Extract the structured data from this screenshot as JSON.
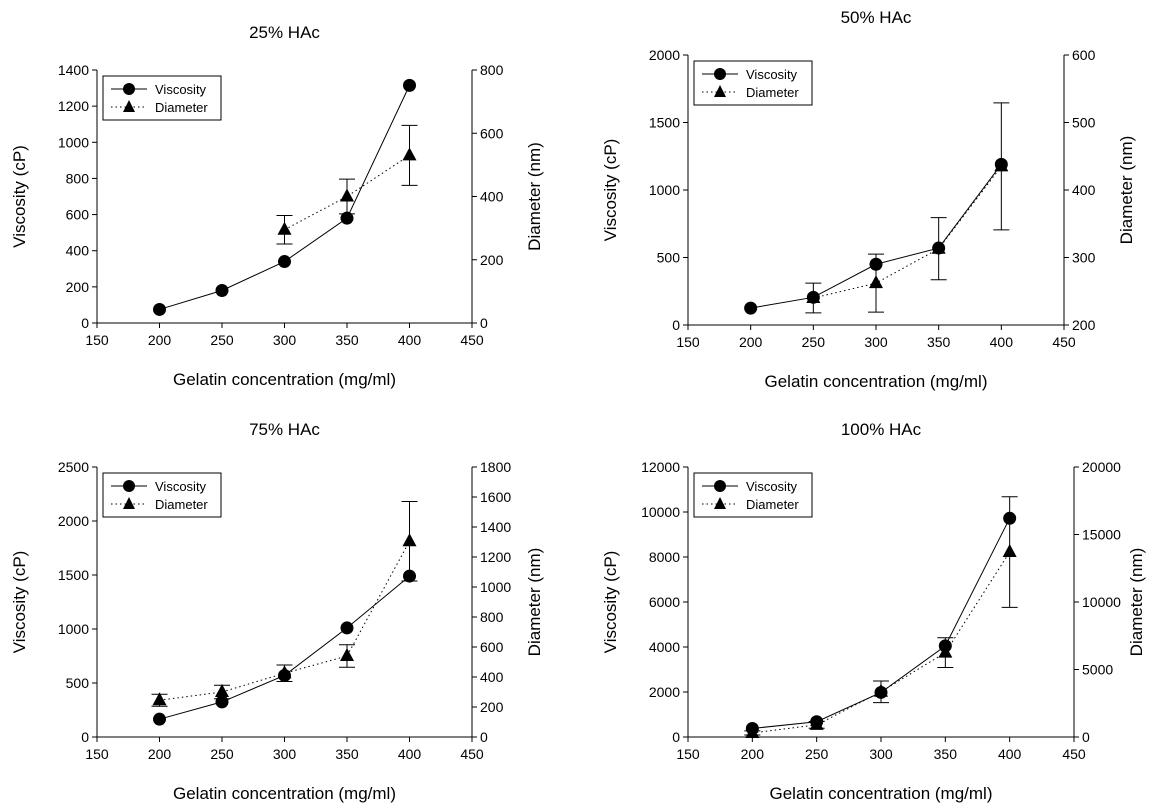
{
  "chart_data": [
    {
      "type": "line",
      "title": "25% HAc",
      "xlabel": "Gelatin concentration (mg/ml)",
      "ylabel": "Viscosity (cP)",
      "y2label": "Diameter (nm)",
      "xlim": [
        150,
        450
      ],
      "xticks": [
        150,
        200,
        250,
        300,
        350,
        400,
        450
      ],
      "ylim": [
        0,
        1400
      ],
      "yticks": [
        0,
        200,
        400,
        600,
        800,
        1000,
        1200,
        1400
      ],
      "y2lim": [
        0,
        800
      ],
      "y2ticks": [
        0,
        200,
        400,
        600,
        800
      ],
      "legend": "top-left",
      "series": [
        {
          "name": "Viscosity",
          "axis": "left",
          "marker": "circle",
          "line": "solid",
          "x": [
            200,
            250,
            300,
            350,
            400
          ],
          "values": [
            75,
            180,
            340,
            580,
            1315
          ]
        },
        {
          "name": "Diameter",
          "axis": "right",
          "marker": "triangle",
          "line": "dotted",
          "x": [
            300,
            350,
            400
          ],
          "values": [
            295,
            400,
            530
          ],
          "errors": [
            45,
            55,
            95
          ]
        }
      ]
    },
    {
      "type": "line",
      "title": "50% HAc",
      "xlabel": "Gelatin concentration (mg/ml)",
      "ylabel": "Viscosity (cP)",
      "y2label": "Diameter (nm)",
      "xlim": [
        150,
        450
      ],
      "xticks": [
        150,
        200,
        250,
        300,
        350,
        400,
        450
      ],
      "ylim": [
        0,
        2000
      ],
      "yticks": [
        0,
        500,
        1000,
        1500,
        2000
      ],
      "y2lim": [
        200,
        600
      ],
      "y2ticks": [
        200,
        300,
        400,
        500,
        600
      ],
      "legend": "top-left",
      "series": [
        {
          "name": "Viscosity",
          "axis": "left",
          "marker": "circle",
          "line": "solid",
          "x": [
            200,
            250,
            300,
            350,
            400
          ],
          "values": [
            125,
            205,
            450,
            570,
            1190
          ]
        },
        {
          "name": "Diameter",
          "axis": "right",
          "marker": "triangle",
          "line": "dotted",
          "x": [
            250,
            300,
            350,
            400
          ],
          "values": [
            240,
            262,
            313,
            435
          ],
          "errors": [
            22,
            43,
            46,
            94
          ]
        }
      ]
    },
    {
      "type": "line",
      "title": "75% HAc",
      "xlabel": "Gelatin concentration (mg/ml)",
      "ylabel": "Viscosity (cP)",
      "y2label": "Diameter (nm)",
      "xlim": [
        150,
        450
      ],
      "xticks": [
        150,
        200,
        250,
        300,
        350,
        400,
        450
      ],
      "ylim": [
        0,
        2500
      ],
      "yticks": [
        0,
        500,
        1000,
        1500,
        2000,
        2500
      ],
      "y2lim": [
        0,
        1800
      ],
      "y2ticks": [
        0,
        200,
        400,
        600,
        800,
        1000,
        1200,
        1400,
        1600,
        1800
      ],
      "legend": "top-left",
      "series": [
        {
          "name": "Viscosity",
          "axis": "left",
          "marker": "circle",
          "line": "solid",
          "x": [
            200,
            250,
            300,
            350,
            400
          ],
          "values": [
            165,
            325,
            570,
            1010,
            1490
          ]
        },
        {
          "name": "Diameter",
          "axis": "right",
          "marker": "triangle",
          "line": "dotted",
          "x": [
            200,
            250,
            300,
            350,
            400
          ],
          "values": [
            245,
            300,
            425,
            540,
            1305
          ],
          "errors": [
            40,
            45,
            55,
            75,
            265
          ]
        }
      ]
    },
    {
      "type": "line",
      "title": "100% HAc",
      "xlabel": "Gelatin concentration (mg/ml)",
      "ylabel": "Viscosity (cP)",
      "y2label": "Diameter (nm)",
      "xlim": [
        150,
        450
      ],
      "xticks": [
        150,
        200,
        250,
        300,
        350,
        400,
        450
      ],
      "ylim": [
        0,
        12000
      ],
      "yticks": [
        0,
        2000,
        4000,
        6000,
        8000,
        10000,
        12000
      ],
      "y2lim": [
        0,
        20000
      ],
      "y2ticks": [
        0,
        5000,
        10000,
        15000,
        20000
      ],
      "legend": "top-left",
      "series": [
        {
          "name": "Viscosity",
          "axis": "left",
          "marker": "circle",
          "line": "solid",
          "x": [
            200,
            250,
            300,
            350,
            400
          ],
          "values": [
            380,
            680,
            1980,
            4050,
            9720
          ]
        },
        {
          "name": "Diameter",
          "axis": "right",
          "marker": "triangle",
          "line": "dotted",
          "x": [
            200,
            250,
            300,
            350,
            400
          ],
          "values": [
            300,
            900,
            3350,
            6250,
            13700
          ],
          "errors": [
            150,
            250,
            800,
            1100,
            4100
          ]
        }
      ]
    }
  ]
}
